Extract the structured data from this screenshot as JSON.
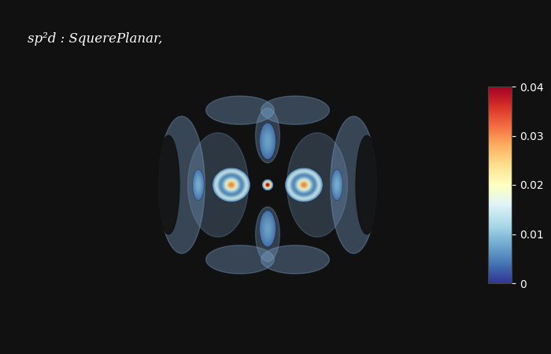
{
  "chart_data": {
    "type": "isosurface",
    "title": "sp²d : SquerePlanar,",
    "colorbar_range": [
      0,
      0.04
    ],
    "colorbar_ticks": [
      0,
      0.01,
      0.02,
      0.03,
      0.04
    ],
    "tick_labels": false
  }
}
